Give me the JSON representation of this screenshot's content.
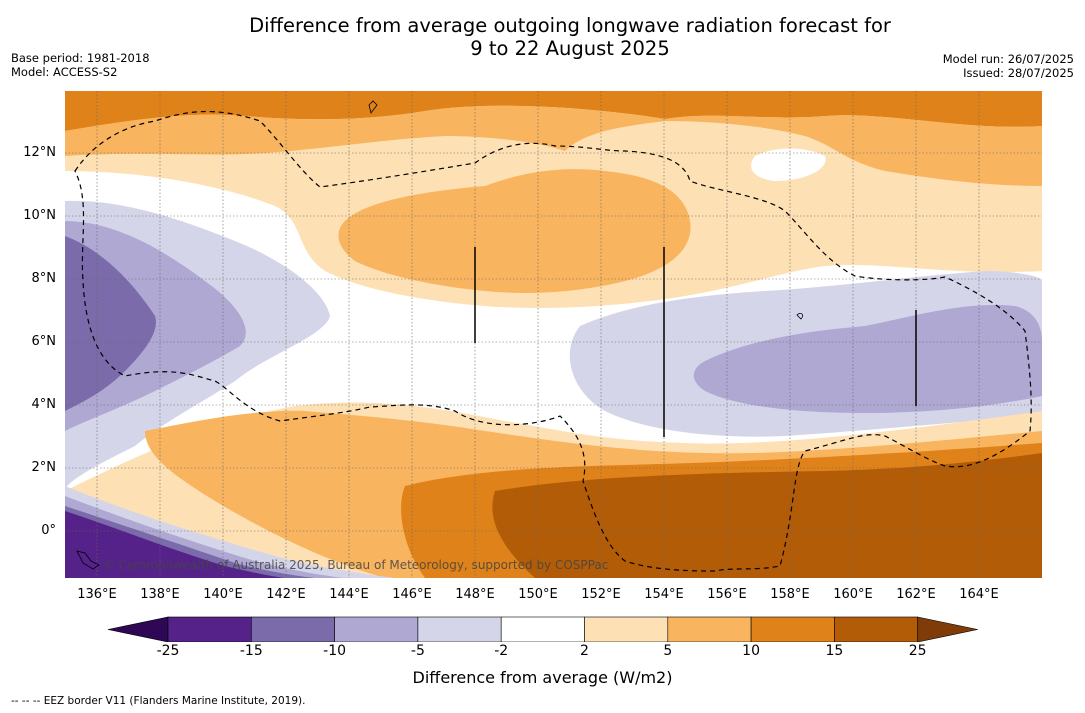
{
  "title_line1": "Difference from average outgoing longwave radiation forecast for",
  "title_line2": "9 to 22 August 2025",
  "meta_left": {
    "base_period": "Base period: 1981-2018",
    "model": "Model: ACCESS-S2"
  },
  "meta_right": {
    "model_run": "Model run: 26/07/2025",
    "issued": "Issued: 28/07/2025"
  },
  "copyright": "© Commonwealth of Australia 2025, Bureau of Meteorology, supported by COSPPac",
  "footnote": "-- -- -- EEZ border V11 (Flanders Marine Institute, 2019).",
  "map": {
    "lat_labels": [
      "12°N",
      "10°N",
      "8°N",
      "6°N",
      "4°N",
      "2°N",
      "0°"
    ],
    "lon_labels": [
      "136°E",
      "138°E",
      "140°E",
      "142°E",
      "144°E",
      "146°E",
      "148°E",
      "150°E",
      "152°E",
      "154°E",
      "156°E",
      "158°E",
      "160°E",
      "162°E",
      "164°E"
    ]
  },
  "legend": {
    "title": "Difference from average (W/m2)",
    "bounds": [
      "-25",
      "-15",
      "-10",
      "-5",
      "-2",
      "2",
      "5",
      "10",
      "15",
      "25"
    ],
    "colors": [
      "#2e0854",
      "#55228a",
      "#7b6baa",
      "#aea8d3",
      "#d5d5ea",
      "#ffffff",
      "#fde0b4",
      "#f9b45f",
      "#e0821a",
      "#b35c08",
      "#7f3b08"
    ]
  }
}
